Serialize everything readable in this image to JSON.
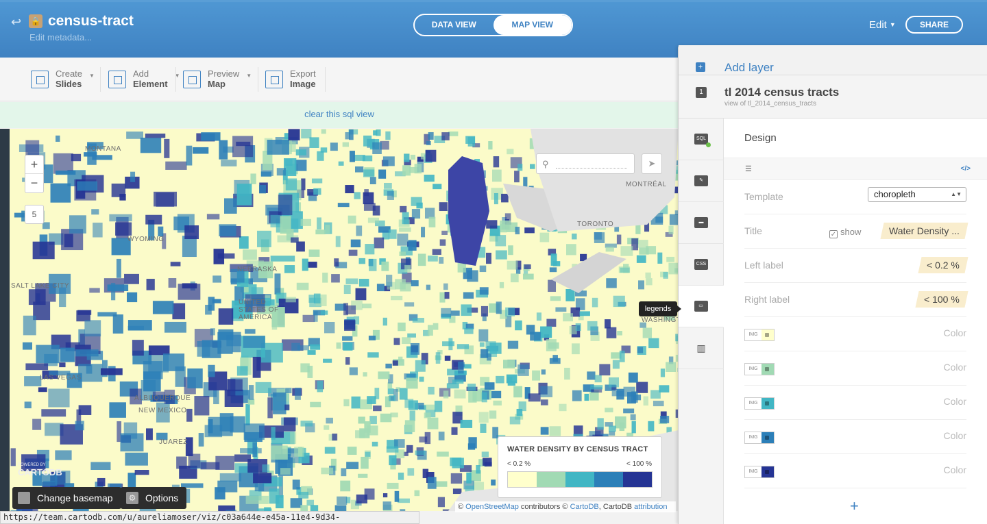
{
  "header": {
    "title": "census-tract",
    "meta_link": "Edit metadata...",
    "view_tabs": [
      "DATA VIEW",
      "MAP VIEW"
    ],
    "active_view": "MAP VIEW",
    "edit_label": "Edit",
    "share_label": "SHARE"
  },
  "toolbar": {
    "items": [
      {
        "top": "Create",
        "bottom": "Slides",
        "icon": "slides-icon"
      },
      {
        "top": "Add",
        "bottom": "Element",
        "icon": "element-icon"
      },
      {
        "top": "Preview",
        "bottom": "Map",
        "icon": "preview-icon"
      },
      {
        "top": "Export",
        "bottom": "Image",
        "icon": "image-icon"
      }
    ]
  },
  "sql_notice": "clear this sql view",
  "map": {
    "zoom_in": "+",
    "zoom_out": "−",
    "zoom_level": "5",
    "place_labels": [
      "MONTANA",
      "MONTRÉAL",
      "TORONTO",
      "WYOMING",
      "SALT LAKE CITY",
      "NEBRASKA",
      "UNITED STATES OF AMERICA",
      "LAS VEGAS",
      "ALBUQUERQUE",
      "NEW MEXICO",
      "JUAREZ",
      "WASHINGTON"
    ],
    "logo_small": "POWERED BY",
    "logo": "CARTODB",
    "change_basemap": "Change basemap",
    "options": "Options",
    "attribution": {
      "prefix": "©",
      "osm": "OpenStreetMap",
      "mid": "contributors ©",
      "cartodb": "CartoDB",
      "tail": ", CartoDB",
      "attr": "attribution"
    }
  },
  "legend": {
    "title": "WATER DENSITY BY CENSUS TRACT",
    "left": "< 0.2 %",
    "right": "< 100 %",
    "colors": [
      "#ffffcc",
      "#a1dab4",
      "#41b6c4",
      "#2c7fb8",
      "#253494"
    ]
  },
  "status_url": "https://team.cartodb.com/u/aureliamoser/viz/c03a644e-e45a-11e4-9d34-0e0c41326911/map#legends_mod",
  "panel": {
    "add_layer": "Add layer",
    "layer_number": "1",
    "layer_name": "tl 2014 census tracts",
    "layer_source": "view of tl_2014_census_tracts",
    "side_icons": [
      "sql-icon",
      "wizard-icon",
      "infowindow-icon",
      "css-icon",
      "legends-icon",
      "filters-icon"
    ],
    "tooltip": "legends",
    "section_title": "Design",
    "code_toggle": "</>",
    "template_label": "Template",
    "template_value": "choropleth",
    "title_label": "Title",
    "show_label": "show",
    "title_value": "Water Density ...",
    "left_label": "Left label",
    "left_value": "< 0.2 %",
    "right_label": "Right label",
    "right_value": "< 100 %",
    "color_label": "Color",
    "img_label": "IMG",
    "add_row": "+"
  }
}
